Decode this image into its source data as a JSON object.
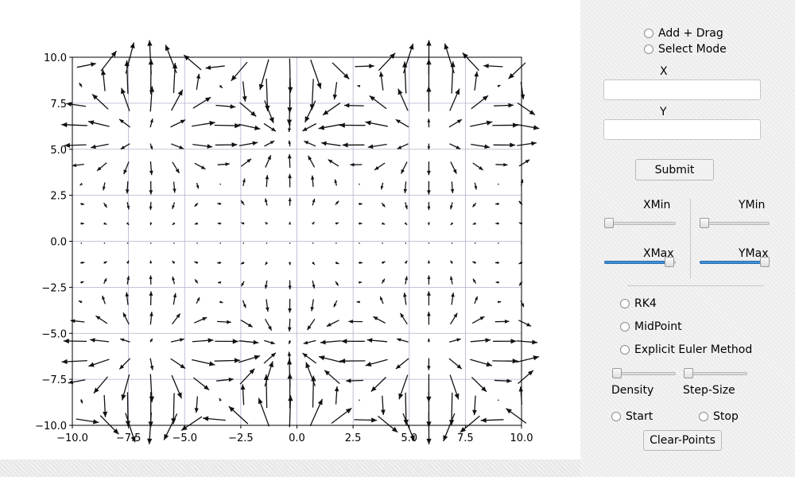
{
  "plot": {
    "x_ticks": [
      "−10.0",
      "−7.5",
      "−5.0",
      "−2.5",
      "0.0",
      "2.5",
      "5.0",
      "7.5",
      "10.0"
    ],
    "y_ticks": [
      "10.0",
      "7.5",
      "5.0",
      "2.5",
      "0.0",
      "−2.5",
      "−5.0",
      "−7.5",
      "−10.0"
    ]
  },
  "chart_data": {
    "type": "quiver",
    "xlim": [
      -10,
      10
    ],
    "ylim": [
      -10,
      10
    ],
    "grid": true,
    "field": "periodic vector field with arrows converging/diverging around centers near y≈−6.5 and y≈9.5; negligible magnitude near y≈0"
  },
  "panel": {
    "mode_add_drag": "Add + Drag",
    "mode_select": "Select Mode",
    "x_label": "X",
    "x_value": "",
    "y_label": "Y",
    "y_value": "",
    "submit_label": "Submit",
    "xmin_label": "XMin",
    "ymin_label": "YMin",
    "xmax_label": "XMax",
    "ymax_label": "YMax",
    "xmin_value": 0,
    "ymin_value": 0,
    "xmax_value": 1,
    "ymax_value": 1,
    "method_rk4": "RK4",
    "method_midpoint": "MidPoint",
    "method_euler": "Explicit Euler Method",
    "density_label": "Density",
    "density_value": 0,
    "stepsize_label": "Step-Size",
    "stepsize_value": 0,
    "start_label": "Start",
    "stop_label": "Stop",
    "clear_label": "Clear-Points",
    "accent_color": "#3d8fd8"
  }
}
